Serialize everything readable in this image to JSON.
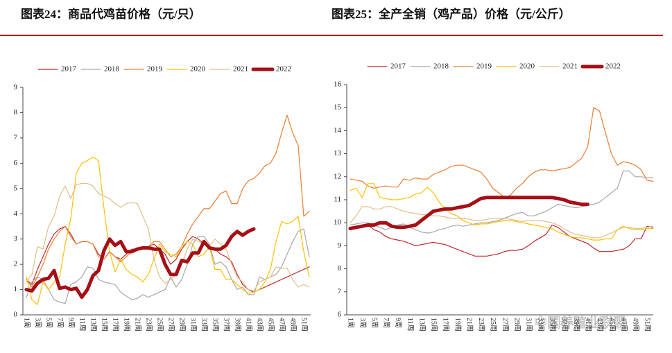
{
  "chart_data": [
    {
      "type": "line",
      "title": "图表24：商品代鸡苗价格（元/只）",
      "categories": [
        "1周",
        null,
        "3周",
        null,
        "5周",
        null,
        "7周",
        null,
        "9周",
        null,
        "11周",
        null,
        "13周",
        null,
        "15周",
        null,
        "17周",
        null,
        "19周",
        null,
        "21周",
        null,
        "23周",
        null,
        "25周",
        null,
        "27周",
        null,
        "29周",
        null,
        "31周",
        null,
        "33周",
        null,
        "35周",
        null,
        "37周",
        null,
        "39周",
        null,
        "41周",
        null,
        "43周",
        null,
        "45周",
        null,
        "47周",
        null,
        "49周",
        null,
        "51周",
        null
      ],
      "ylim": [
        0,
        9
      ],
      "yticks": [
        0,
        1,
        2,
        3,
        4,
        5,
        6,
        7,
        8,
        9
      ],
      "series": [
        {
          "name": "2017",
          "color": "#c0282d",
          "width": 1.2,
          "values": [
            1.4,
            1.2,
            1.8,
            2.3,
            2.8,
            3.2,
            3.4,
            3.5,
            3.2,
            2.8,
            2.9,
            2.9,
            2.8,
            2.4,
            2.2,
            2.5,
            2.3,
            2.2,
            2.4,
            2.6,
            2.6,
            2.6,
            2.7,
            2.8,
            2.6,
            2.4,
            2.0,
            2.2,
            2.6,
            2.9,
            3.1,
            3.0,
            2.8,
            2.7,
            2.6,
            2.4,
            2.3,
            2.1,
            1.6,
            1.2,
            1.0,
            0.9,
            1.0,
            1.1,
            1.2,
            1.3,
            1.4,
            1.5,
            1.6,
            1.7,
            1.8,
            1.9
          ]
        },
        {
          "name": "2018",
          "color": "#a6a6a6",
          "width": 1.2,
          "values": [
            0.7,
            1.3,
            1.5,
            1.4,
            1.0,
            0.6,
            0.5,
            0.45,
            1.2,
            1.3,
            1.5,
            1.9,
            1.85,
            1.4,
            1.3,
            1.25,
            1.2,
            0.9,
            0.75,
            0.6,
            0.65,
            0.8,
            0.7,
            0.8,
            0.9,
            1.0,
            1.5,
            1.1,
            1.4,
            2.0,
            2.8,
            3.1,
            3.1,
            2.8,
            2.0,
            2.1,
            1.9,
            1.4,
            1.0,
            1.1,
            0.8,
            0.8,
            1.5,
            1.4,
            1.5,
            1.6,
            1.9,
            2.4,
            2.9,
            3.3,
            3.4,
            2.3
          ]
        },
        {
          "name": "2019",
          "color": "#ed7d31",
          "width": 1.2,
          "values": [
            1.4,
            1.1,
            1.5,
            2.0,
            2.6,
            3.0,
            3.3,
            3.5,
            3.1,
            2.8,
            2.9,
            2.9,
            2.8,
            2.3,
            2.2,
            2.5,
            2.3,
            2.1,
            2.3,
            2.5,
            2.6,
            2.6,
            2.7,
            2.9,
            2.9,
            2.6,
            2.3,
            2.4,
            2.7,
            3.2,
            3.6,
            3.9,
            4.2,
            4.2,
            4.5,
            4.8,
            4.9,
            4.4,
            4.4,
            5.0,
            5.3,
            5.4,
            5.6,
            5.9,
            6.0,
            6.4,
            7.2,
            7.9,
            7.2,
            6.7,
            3.9,
            4.1
          ]
        },
        {
          "name": "2020",
          "color": "#ffc000",
          "width": 1.2,
          "values": [
            1.5,
            0.6,
            0.4,
            1.3,
            1.0,
            1.3,
            1.5,
            2.8,
            3.8,
            5.6,
            6.0,
            6.1,
            6.25,
            6.1,
            4.2,
            2.5,
            1.7,
            2.2,
            1.8,
            1.6,
            1.5,
            1.3,
            1.6,
            2.2,
            2.8,
            2.5,
            2.4,
            2.3,
            2.7,
            2.9,
            2.8,
            2.3,
            2.4,
            2.7,
            1.8,
            1.8,
            1.4,
            1.4,
            1.2,
            1.0,
            0.85,
            0.9,
            1.0,
            1.3,
            1.8,
            2.9,
            3.7,
            3.6,
            3.7,
            3.9,
            2.5,
            1.5
          ]
        },
        {
          "name": "2021",
          "color": "#dfbf88",
          "width": 1.2,
          "values": [
            1.3,
            1.6,
            2.7,
            2.6,
            3.5,
            3.9,
            4.7,
            5.1,
            4.6,
            5.15,
            5.2,
            5.2,
            5.1,
            4.8,
            4.7,
            4.6,
            4.4,
            4.25,
            4.4,
            4.45,
            4.4,
            3.9,
            3.4,
            2.2,
            1.5,
            1.25,
            1.4,
            1.6,
            2.0,
            2.6,
            3.0,
            2.9,
            2.8,
            2.7,
            3.0,
            2.8,
            2.6,
            2.0,
            1.5,
            1.3,
            1.0,
            0.95,
            1.3,
            1.4,
            1.5,
            1.9,
            1.85,
            1.85,
            1.4,
            1.1,
            1.2,
            1.1
          ]
        },
        {
          "name": "2022",
          "color": "#a50f15",
          "width": 5,
          "values": [
            1.0,
            0.95,
            1.25,
            1.4,
            1.45,
            1.75,
            1.05,
            1.1,
            1.0,
            1.05,
            0.7,
            1.0,
            1.55,
            1.75,
            2.55,
            3.0,
            2.75,
            2.9,
            2.5,
            2.5,
            2.6,
            2.65,
            2.65,
            2.6,
            2.6,
            2.0,
            1.6,
            1.6,
            2.15,
            2.1,
            2.45,
            2.45,
            2.9,
            2.65,
            2.6,
            2.6,
            2.75,
            3.1,
            3.3,
            3.15,
            3.3,
            3.4,
            null,
            null,
            null,
            null,
            null,
            null,
            null,
            null,
            null,
            null
          ]
        }
      ]
    },
    {
      "type": "line",
      "title": "图表25：全产全销（鸡产品）价格（元/公斤）",
      "categories": [
        "1周",
        null,
        "3周",
        null,
        "5周",
        null,
        "7周",
        null,
        "9周",
        null,
        "11周",
        null,
        "13周",
        null,
        "15周",
        null,
        "17周",
        null,
        "19周",
        null,
        "21周",
        null,
        "23周",
        null,
        "25周",
        null,
        "27周",
        null,
        "29周",
        null,
        "31周",
        null,
        "33周",
        null,
        "35周",
        null,
        "37周",
        null,
        "39周",
        null,
        "41周",
        null,
        "43周",
        null,
        "45周",
        null,
        "47周",
        null,
        "49周",
        null,
        "51周",
        null
      ],
      "ylim": [
        6,
        16
      ],
      "yticks": [
        6,
        7,
        8,
        9,
        10,
        11,
        12,
        13,
        14,
        15,
        16
      ],
      "series": [
        {
          "name": "2017",
          "color": "#c0282d",
          "width": 1.2,
          "values": [
            9.8,
            9.85,
            9.9,
            9.9,
            9.7,
            9.6,
            9.4,
            9.3,
            9.25,
            9.2,
            9.1,
            9.0,
            9.05,
            9.1,
            9.15,
            9.1,
            9.05,
            8.95,
            8.85,
            8.75,
            8.65,
            8.55,
            8.55,
            8.55,
            8.6,
            8.65,
            8.75,
            8.8,
            8.8,
            8.85,
            9.0,
            9.2,
            9.35,
            9.5,
            9.9,
            9.8,
            9.6,
            9.4,
            9.3,
            9.2,
            9.1,
            8.9,
            8.75,
            8.75,
            8.75,
            8.8,
            8.85,
            9.0,
            9.3,
            9.3,
            9.85,
            9.8
          ]
        },
        {
          "name": "2018",
          "color": "#a6a6a6",
          "width": 1.2,
          "values": [
            9.9,
            9.95,
            10.0,
            10.0,
            9.9,
            9.8,
            9.7,
            9.8,
            9.9,
            9.95,
            9.8,
            9.7,
            9.6,
            9.55,
            9.6,
            9.7,
            9.75,
            9.85,
            9.9,
            9.85,
            9.9,
            9.95,
            10.0,
            10.0,
            10.05,
            10.1,
            10.2,
            10.3,
            10.4,
            10.45,
            10.3,
            10.3,
            10.4,
            10.5,
            10.65,
            10.8,
            10.75,
            10.7,
            10.65,
            10.7,
            10.75,
            10.8,
            10.9,
            11.1,
            11.3,
            11.5,
            12.25,
            12.25,
            12.0,
            12.0,
            11.95,
            11.95
          ]
        },
        {
          "name": "2019",
          "color": "#ed7d31",
          "width": 1.2,
          "values": [
            11.9,
            11.85,
            11.8,
            11.6,
            11.5,
            11.55,
            11.6,
            11.55,
            11.55,
            11.9,
            11.85,
            11.95,
            11.9,
            11.9,
            12.1,
            12.2,
            12.3,
            12.45,
            12.5,
            12.5,
            12.4,
            12.3,
            12.2,
            11.9,
            11.5,
            11.3,
            11.1,
            11.2,
            11.5,
            11.7,
            12.0,
            12.2,
            12.3,
            12.3,
            12.25,
            12.3,
            12.35,
            12.4,
            12.6,
            12.8,
            13.3,
            15.0,
            14.85,
            13.9,
            13.0,
            12.5,
            12.65,
            12.6,
            12.5,
            12.3,
            11.85,
            11.8
          ]
        },
        {
          "name": "2020",
          "color": "#ffc000",
          "width": 1.2,
          "values": [
            11.4,
            11.5,
            11.1,
            11.7,
            11.7,
            11.1,
            11.05,
            11.0,
            11.0,
            11.05,
            11.1,
            11.25,
            11.3,
            11.55,
            11.3,
            10.9,
            10.6,
            10.4,
            10.3,
            10.1,
            10.0,
            9.9,
            9.95,
            9.95,
            10.0,
            10.05,
            10.1,
            10.1,
            10.05,
            10.0,
            9.95,
            9.9,
            9.85,
            9.8,
            9.75,
            9.6,
            9.5,
            9.4,
            9.35,
            9.35,
            9.3,
            9.25,
            9.25,
            9.3,
            9.3,
            9.7,
            9.85,
            9.75,
            9.7,
            9.7,
            9.75,
            9.75
          ]
        },
        {
          "name": "2021",
          "color": "#dfbf88",
          "width": 1.2,
          "values": [
            10.0,
            10.3,
            10.7,
            10.7,
            10.6,
            10.6,
            10.7,
            10.7,
            10.6,
            10.5,
            10.45,
            10.4,
            10.35,
            10.35,
            10.3,
            10.3,
            10.25,
            10.2,
            10.2,
            10.2,
            10.15,
            10.1,
            10.1,
            10.15,
            10.2,
            10.2,
            10.2,
            10.15,
            10.1,
            10.05,
            10.1,
            10.1,
            10.1,
            10.05,
            10.0,
            9.9,
            9.75,
            9.6,
            9.5,
            9.45,
            9.4,
            9.35,
            9.35,
            9.45,
            9.55,
            9.7,
            9.8,
            9.8,
            9.75,
            9.75,
            9.8,
            9.85
          ]
        },
        {
          "name": "2022",
          "color": "#a50f15",
          "width": 5,
          "values": [
            9.75,
            9.8,
            9.85,
            9.9,
            9.9,
            10.0,
            10.0,
            9.85,
            9.8,
            9.8,
            9.85,
            9.9,
            10.1,
            10.3,
            10.5,
            10.55,
            10.6,
            10.6,
            10.65,
            10.7,
            10.75,
            10.9,
            11.05,
            11.1,
            11.1,
            11.1,
            11.1,
            11.1,
            11.1,
            11.1,
            11.1,
            11.1,
            11.1,
            11.1,
            11.1,
            11.05,
            11.0,
            10.9,
            10.85,
            10.8,
            10.8,
            null,
            null,
            null,
            null,
            null,
            null,
            null,
            null,
            null,
            null,
            null
          ]
        }
      ]
    }
  ],
  "watermark": "中国养殖业联盟"
}
